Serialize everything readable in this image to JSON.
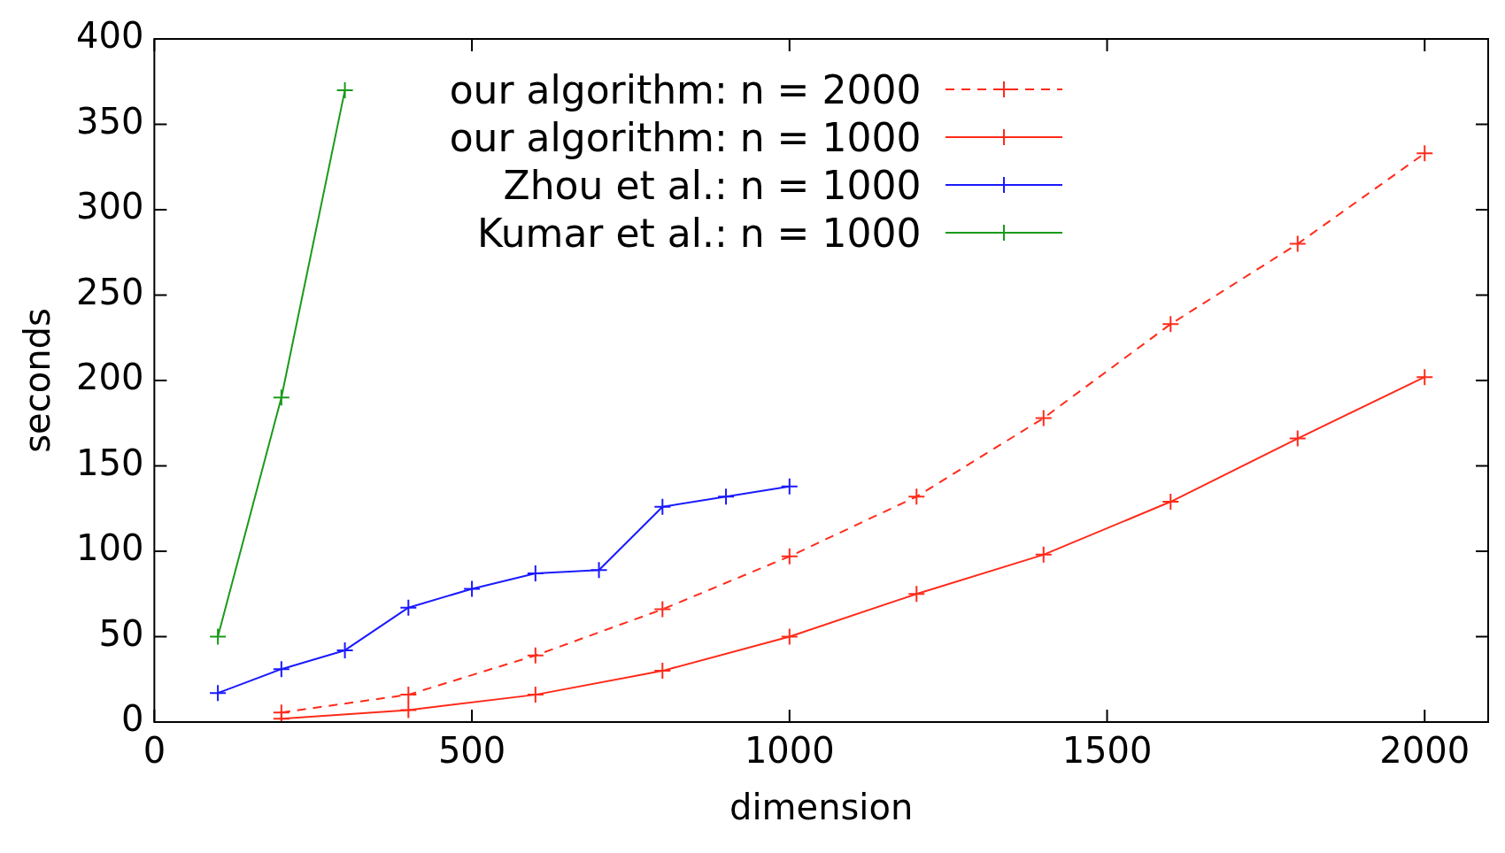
{
  "chart_data": {
    "type": "line",
    "xlabel": "dimension",
    "ylabel": "seconds",
    "xlim": [
      0,
      2100
    ],
    "xticks": [
      0,
      500,
      1000,
      1500,
      2000
    ],
    "ylim": [
      0,
      400
    ],
    "yticks": [
      0,
      50,
      100,
      150,
      200,
      250,
      300,
      350,
      400
    ],
    "grid": false,
    "legend": "top",
    "marker": "cross",
    "series": [
      {
        "name": "our algorithm: n = 2000",
        "color": "#ff2a1a",
        "line_style": "dashed",
        "x": [
          200,
          400,
          600,
          800,
          1000,
          1200,
          1400,
          1600,
          1800,
          2000
        ],
        "values": [
          5.6,
          16,
          39,
          66,
          97,
          132,
          178,
          233,
          280,
          333
        ]
      },
      {
        "name": "our algorithm: n = 1000",
        "color": "#ff2a1a",
        "line_style": "solid",
        "x": [
          200,
          400,
          600,
          800,
          1000,
          1200,
          1400,
          1600,
          1800,
          2000
        ],
        "values": [
          2,
          7,
          16,
          30,
          50,
          75,
          98,
          129,
          166,
          202
        ]
      },
      {
        "name": "Zhou et al.: n = 1000",
        "color": "#1a1aff",
        "line_style": "solid",
        "x": [
          100,
          200,
          300,
          400,
          500,
          600,
          700,
          800,
          900,
          1000
        ],
        "values": [
          17,
          31,
          42,
          67,
          78,
          87,
          89,
          126,
          132,
          138
        ]
      },
      {
        "name": "Kumar et al.: n = 1000",
        "color": "#1a9a1a",
        "line_style": "solid",
        "x": [
          100,
          200,
          300
        ],
        "values": [
          50,
          190,
          370
        ]
      }
    ]
  }
}
